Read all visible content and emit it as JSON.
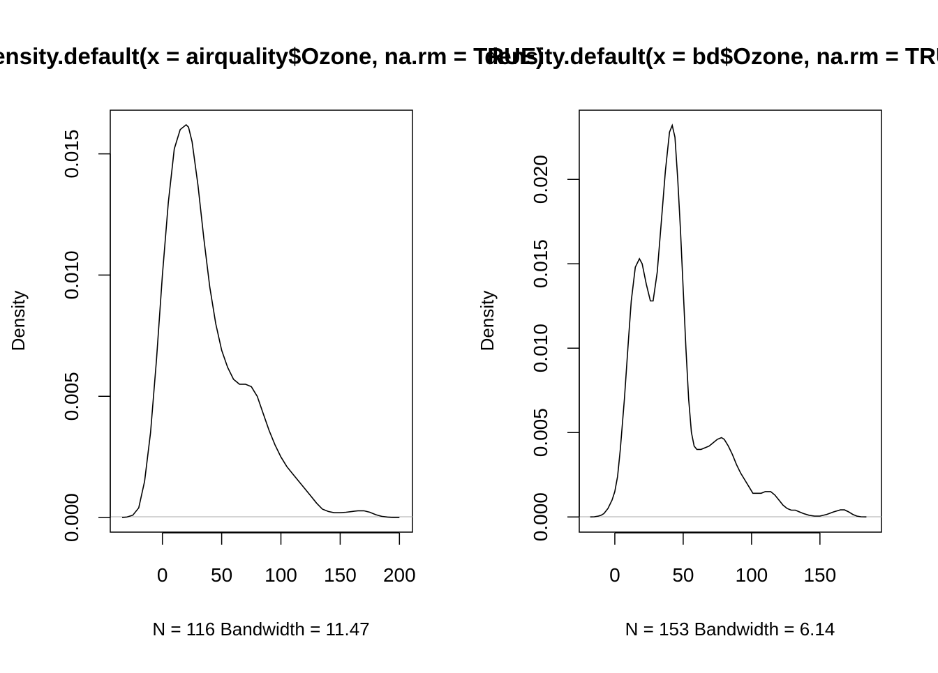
{
  "chart_data": [
    {
      "type": "line",
      "title": "density.default(x = airquality$Ozone, na.rm = TRUE)",
      "xlabel": "N = 116   Bandwidth = 11.47",
      "ylabel": "Density",
      "xlim": [
        -44,
        211
      ],
      "ylim": [
        -0.0006,
        0.0168
      ],
      "x_ticks": [
        "0",
        "50",
        "100",
        "150",
        "200"
      ],
      "y_ticks": [
        "0.000",
        "0.005",
        "0.010",
        "0.015"
      ],
      "grid": false,
      "series": [
        {
          "x": [
            -34,
            -30,
            -25,
            -20,
            -15,
            -10,
            -5,
            0,
            5,
            10,
            15,
            20,
            22,
            25,
            30,
            35,
            40,
            45,
            50,
            55,
            60,
            65,
            70,
            75,
            80,
            85,
            90,
            95,
            100,
            105,
            110,
            115,
            120,
            125,
            130,
            135,
            140,
            145,
            150,
            155,
            160,
            165,
            170,
            175,
            180,
            185,
            190,
            195,
            200
          ],
          "y": [
            0.0,
            2e-05,
            0.0001,
            0.0004,
            0.0015,
            0.0035,
            0.0065,
            0.01,
            0.013,
            0.0152,
            0.016,
            0.0162,
            0.0161,
            0.0155,
            0.0137,
            0.0115,
            0.0095,
            0.008,
            0.0069,
            0.0062,
            0.0057,
            0.0055,
            0.0055,
            0.0054,
            0.005,
            0.0043,
            0.0036,
            0.003,
            0.0025,
            0.0021,
            0.0018,
            0.0015,
            0.0012,
            0.0009,
            0.0006,
            0.00035,
            0.00025,
            0.0002,
            0.0002,
            0.00022,
            0.00025,
            0.00028,
            0.00028,
            0.00022,
            0.00012,
            5e-05,
            2e-05,
            0.0,
            0.0
          ]
        }
      ]
    },
    {
      "type": "line",
      "title": "density.default(x = bd$Ozone, na.rm = TRUE)",
      "xlabel": "N = 153   Bandwidth = 6.14",
      "ylabel": "Density",
      "xlim": [
        -26,
        195
      ],
      "ylim": [
        -0.0009,
        0.0241
      ],
      "x_ticks": [
        "0",
        "50",
        "100",
        "150"
      ],
      "y_ticks": [
        "0.000",
        "0.005",
        "0.010",
        "0.015",
        "0.020"
      ],
      "grid": false,
      "series": [
        {
          "x": [
            -18,
            -15,
            -12,
            -10,
            -8,
            -5,
            -2,
            0,
            2,
            4,
            7,
            10,
            12,
            15,
            18,
            20,
            23,
            26,
            28,
            31,
            34,
            37,
            40,
            42,
            44,
            46,
            48,
            50,
            52,
            54,
            56,
            58,
            60,
            63,
            66,
            69,
            72,
            75,
            78,
            80,
            83,
            86,
            89,
            92,
            95,
            98,
            101,
            104,
            107,
            110,
            114,
            117,
            120,
            123,
            126,
            129,
            132,
            135,
            138,
            142,
            146,
            150,
            155,
            160,
            165,
            168,
            171,
            174,
            177,
            180,
            184
          ],
          "y": [
            0.0,
            1e-05,
            5e-05,
            0.0001,
            0.0002,
            0.0005,
            0.001,
            0.0015,
            0.0024,
            0.004,
            0.007,
            0.0105,
            0.0128,
            0.0148,
            0.0153,
            0.015,
            0.0138,
            0.0128,
            0.0128,
            0.0145,
            0.0175,
            0.0205,
            0.0228,
            0.0232,
            0.0225,
            0.02,
            0.017,
            0.0135,
            0.01,
            0.007,
            0.005,
            0.0042,
            0.004,
            0.004,
            0.0041,
            0.0042,
            0.0044,
            0.0046,
            0.0047,
            0.0046,
            0.0042,
            0.0037,
            0.0031,
            0.0026,
            0.0022,
            0.0018,
            0.0014,
            0.0014,
            0.0014,
            0.0015,
            0.0015,
            0.0013,
            0.001,
            0.0007,
            0.0005,
            0.0004,
            0.0004,
            0.0003,
            0.0002,
            0.0001,
            5e-05,
            5e-05,
            0.00015,
            0.0003,
            0.00042,
            0.00042,
            0.0003,
            0.00015,
            5e-05,
            1e-05,
            0.0
          ]
        }
      ]
    }
  ]
}
